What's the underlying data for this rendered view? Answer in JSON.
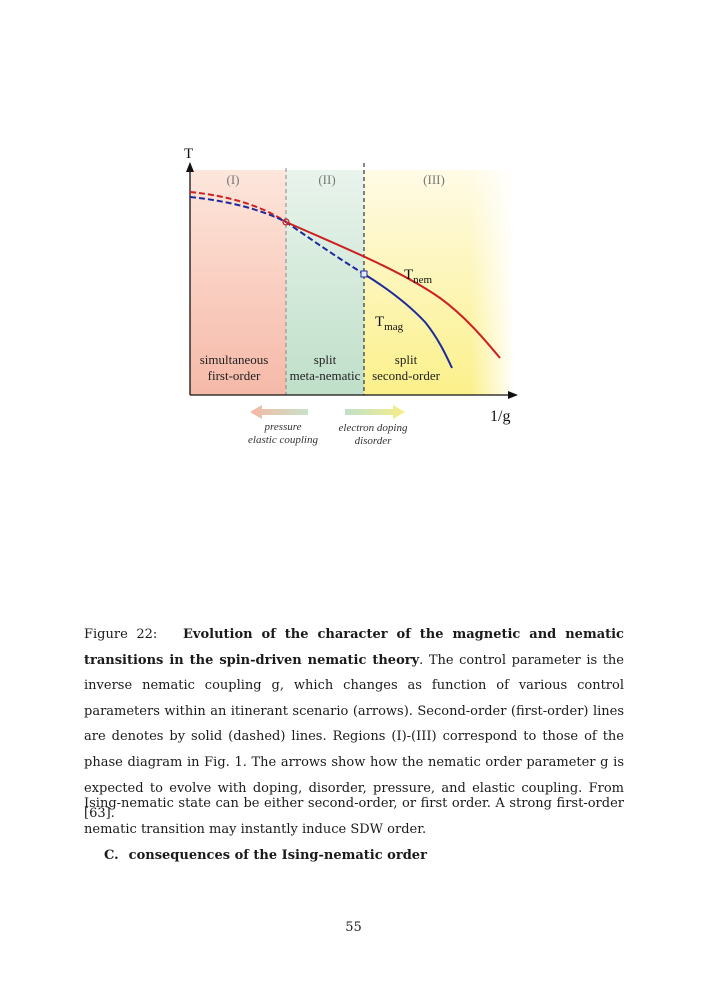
{
  "figure": {
    "axis_y_label": "T",
    "axis_x_label": "1/g",
    "regions": [
      {
        "label": "(I)",
        "text_line1": "simultaneous",
        "text_line2": "first-order"
      },
      {
        "label": "(II)",
        "text_line1": "split",
        "text_line2": "meta-nematic"
      },
      {
        "label": "(III)",
        "text_line1": "split",
        "text_line2": "second-order"
      }
    ],
    "curve_labels": {
      "nem_base": "T",
      "nem_sub": "nem",
      "mag_base": "T",
      "mag_sub": "mag"
    },
    "arrows": {
      "left_line1": "pressure",
      "left_line2": "elastic coupling",
      "right_line1": "electron doping",
      "right_line2": "disorder"
    },
    "colors": {
      "nem_curve": "#cc2222",
      "mag_curve": "#1c2a9c",
      "region1": "#f7c9b8",
      "region2": "#cfe6d6",
      "region3": "#fbf2a0"
    }
  },
  "caption": {
    "label": "Figure 22:",
    "title": "Evolution of the character of the magnetic and nematic transitions in the spin-driven nematic theory",
    "text": ". The control parameter is the inverse nematic coupling g, which changes as function of various control parameters within an itinerant scenario (arrows). Second-order (first-order) lines are denotes by solid (dashed) lines. Regions (I)-(III) correspond to those of the phase diagram in Fig. 1. The arrows show how the nematic order parameter g is expected to evolve with doping, disorder, pressure, and elastic coupling. From [63]."
  },
  "body_text": "Ising-nematic state can be either second-order, or first order. A strong first-order nematic transition may instantly induce SDW order.",
  "section": {
    "number": "C.",
    "title": "consequences of the Ising-nematic order"
  },
  "page_number": "55"
}
